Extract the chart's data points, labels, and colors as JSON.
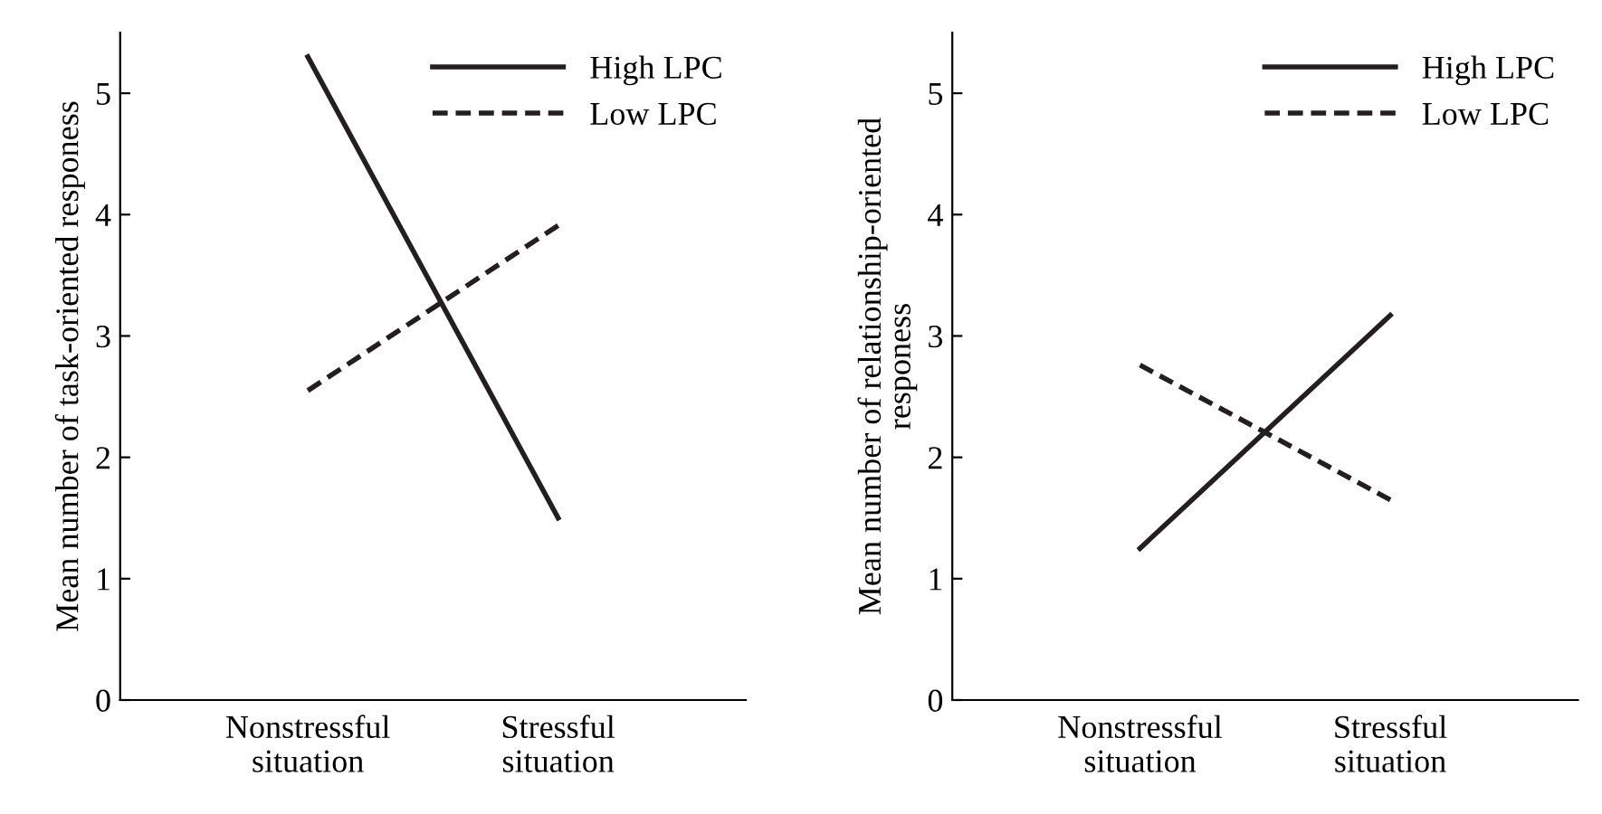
{
  "chart_data": [
    {
      "type": "line",
      "ylabel": "Mean number of task-oriented responess",
      "categories": [
        "Nonstressful\nsituation",
        "Stressful\nsituation"
      ],
      "ylim": [
        0,
        5.5
      ],
      "yticks": [
        0,
        1,
        2,
        3,
        4,
        5
      ],
      "legend": "top right",
      "grid": false,
      "marker": "none",
      "series": [
        {
          "name": "High LPC",
          "color": "#231f20",
          "line_style": "solid",
          "values": [
            5.3,
            1.5
          ]
        },
        {
          "name": "Low LPC",
          "color": "#231f20",
          "line_style": "dashed",
          "values": [
            2.55,
            3.91
          ]
        }
      ]
    },
    {
      "type": "line",
      "ylabel": "Mean number of relationship-oriented\nresponess",
      "categories": [
        "Nonstressful\nsituation",
        "Stressful\nsituation"
      ],
      "ylim": [
        0,
        5.5
      ],
      "yticks": [
        0,
        1,
        2,
        3,
        4,
        5
      ],
      "legend": "top right",
      "grid": false,
      "marker": "none",
      "series": [
        {
          "name": "High LPC",
          "color": "#231f20",
          "line_style": "solid",
          "values": [
            1.25,
            3.17
          ]
        },
        {
          "name": "Low LPC",
          "color": "#231f20",
          "line_style": "dashed",
          "values": [
            2.76,
            1.65
          ]
        }
      ]
    }
  ]
}
